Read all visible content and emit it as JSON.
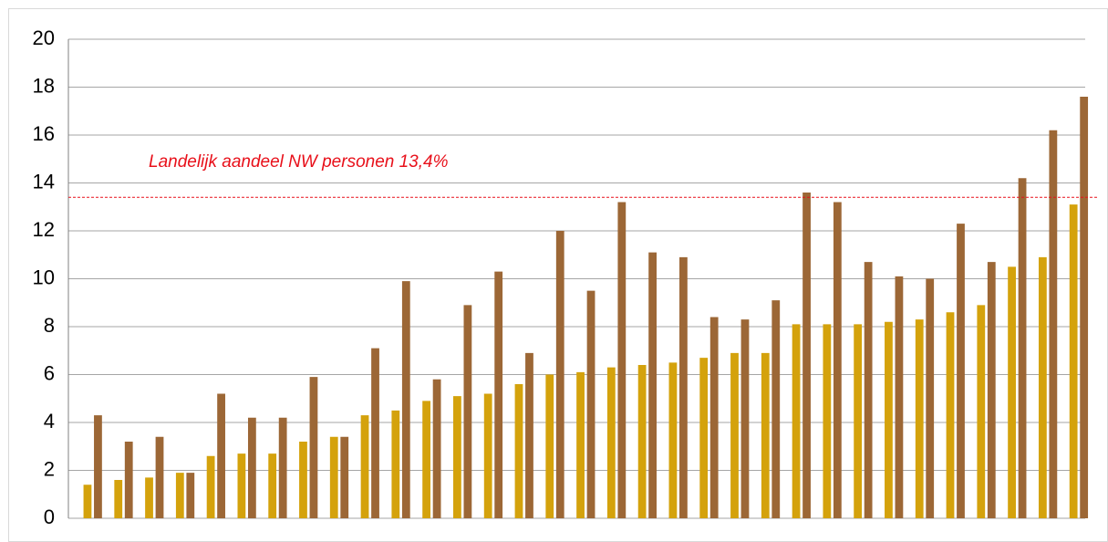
{
  "chart_data": {
    "type": "bar",
    "categories": [
      null,
      null,
      null,
      null,
      null,
      null,
      null,
      null,
      null,
      null,
      null,
      null,
      null,
      null,
      null,
      null,
      null,
      null,
      null,
      null,
      null,
      null,
      null,
      null,
      null,
      null,
      null,
      null,
      null,
      null,
      null,
      null,
      null
    ],
    "series": [
      {
        "color": "#d4a20c",
        "values": [
          1.4,
          1.6,
          1.7,
          1.9,
          2.6,
          2.7,
          2.7,
          3.2,
          3.4,
          4.3,
          4.5,
          4.9,
          5.1,
          5.2,
          5.6,
          6.0,
          6.1,
          6.3,
          6.4,
          6.5,
          6.7,
          6.9,
          6.9,
          8.1,
          8.1,
          8.1,
          8.2,
          8.3,
          8.6,
          8.9,
          10.5,
          10.9,
          13.1
        ]
      },
      {
        "color": "#9c6736",
        "values": [
          4.3,
          3.2,
          3.4,
          1.9,
          5.2,
          4.2,
          4.2,
          5.9,
          3.4,
          7.1,
          9.9,
          5.8,
          8.9,
          10.3,
          6.9,
          12.0,
          9.5,
          13.2,
          11.1,
          10.9,
          8.4,
          8.3,
          9.1,
          13.6,
          13.2,
          10.7,
          10.1,
          10.0,
          12.3,
          10.7,
          14.2,
          16.2,
          17.6
        ]
      }
    ],
    "ylim": [
      0,
      20
    ],
    "yticks": [
      0,
      2,
      4,
      6,
      8,
      10,
      12,
      14,
      16,
      18,
      20
    ],
    "grid": true,
    "reference_line": {
      "value": 13.4,
      "color": "#e8101a",
      "label": "Landelijk aandeel NW personen 13,4%"
    }
  }
}
